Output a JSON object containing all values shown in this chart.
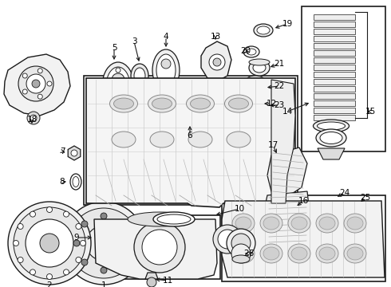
{
  "bg_color": "#ffffff",
  "line_color": "#1a1a1a",
  "fig_width": 4.9,
  "fig_height": 3.6,
  "dpi": 100,
  "label_positions": {
    "1": [
      120,
      288,
      120,
      265
    ],
    "2": [
      55,
      288,
      55,
      265
    ],
    "3": [
      168,
      68,
      168,
      85
    ],
    "4": [
      205,
      60,
      205,
      78
    ],
    "5": [
      143,
      75,
      143,
      92
    ],
    "6": [
      238,
      175,
      238,
      158
    ],
    "7": [
      93,
      195,
      110,
      195
    ],
    "8": [
      93,
      228,
      110,
      228
    ],
    "9": [
      100,
      295,
      120,
      295
    ],
    "10": [
      288,
      272,
      268,
      272
    ],
    "11": [
      230,
      338,
      210,
      338
    ],
    "12": [
      330,
      130,
      310,
      130
    ],
    "13": [
      270,
      55,
      270,
      72
    ],
    "14": [
      365,
      138,
      380,
      138
    ],
    "15": [
      452,
      138,
      445,
      138
    ],
    "16": [
      385,
      242,
      370,
      242
    ],
    "17": [
      345,
      188,
      330,
      200
    ],
    "18": [
      42,
      178,
      42,
      162
    ],
    "19": [
      358,
      32,
      340,
      40
    ],
    "20": [
      305,
      68,
      318,
      68
    ],
    "21": [
      348,
      80,
      332,
      88
    ],
    "22": [
      348,
      105,
      330,
      105
    ],
    "23": [
      348,
      130,
      330,
      130
    ],
    "24": [
      430,
      245,
      418,
      245
    ],
    "25": [
      455,
      248,
      445,
      255
    ],
    "26": [
      310,
      315,
      295,
      305
    ]
  }
}
